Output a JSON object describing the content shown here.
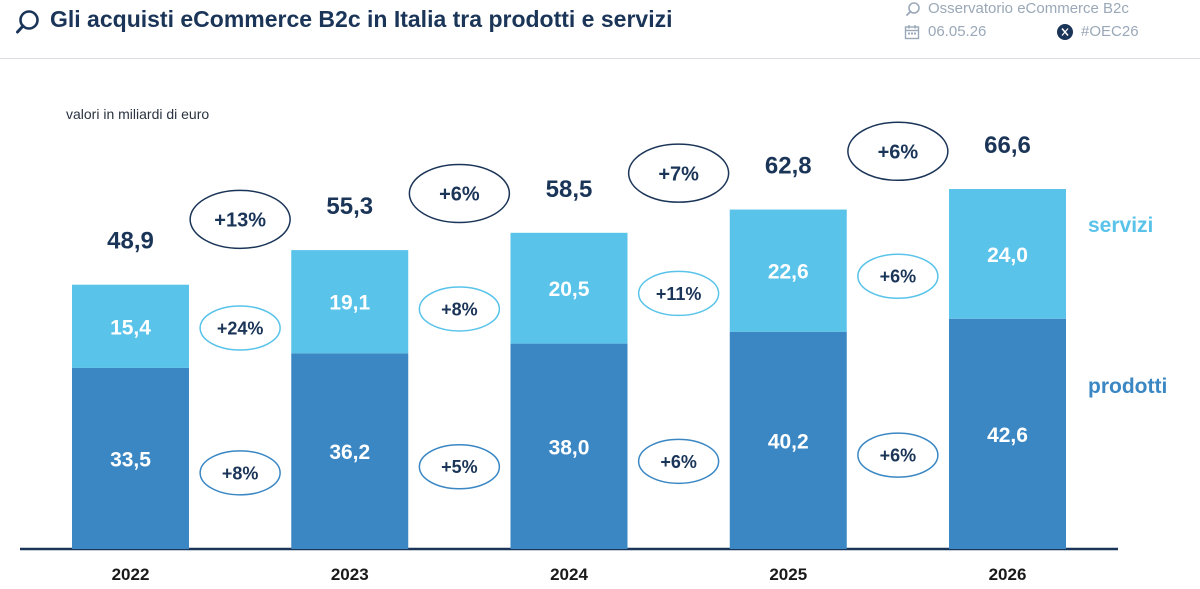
{
  "header": {
    "title": "Gli acquisti eCommerce B2c in Italia tra prodotti e servizi",
    "source": "Osservatorio eCommerce B2c",
    "date": "06.05.26",
    "hashtag": "#OEC26",
    "icons": [
      "search-icon",
      "calendar-icon",
      "x-logo-icon"
    ]
  },
  "colors": {
    "title": "#1b3558",
    "prodotti": "#3a87c4",
    "servizi": "#59c3ea",
    "total_ellipse": "#1b3558",
    "servizi_ellipse": "#59c3ea",
    "prodotti_ellipse": "#3a87c4",
    "axis": "#1b3558"
  },
  "chart_data": {
    "type": "bar",
    "stacked": true,
    "subtitle": "valori in miliardi di euro",
    "categories": [
      "2022",
      "2023",
      "2024",
      "2025",
      "2026"
    ],
    "series": [
      {
        "name": "prodotti",
        "values": [
          33.5,
          36.2,
          38.0,
          40.2,
          42.6
        ],
        "labels": [
          "33,5",
          "36,2",
          "38,0",
          "40,2",
          "42,6"
        ]
      },
      {
        "name": "servizi",
        "values": [
          15.4,
          19.1,
          20.5,
          22.6,
          24.0
        ],
        "labels": [
          "15,4",
          "19,1",
          "20,5",
          "22,6",
          "24,0"
        ]
      }
    ],
    "totals": [
      48.9,
      55.3,
      58.5,
      62.8,
      66.6
    ],
    "total_labels": [
      "48,9",
      "55,3",
      "58,5",
      "62,8",
      "66,6"
    ],
    "growth_total": [
      "+13%",
      "+6%",
      "+7%",
      "+6%"
    ],
    "growth_servizi": [
      "+24%",
      "+8%",
      "+11%",
      "+6%"
    ],
    "growth_prodotti": [
      "+8%",
      "+5%",
      "+6%",
      "+6%"
    ],
    "ylim": [
      0,
      70
    ],
    "legend": [
      "servizi",
      "prodotti"
    ],
    "legend_position": "right",
    "grid": false
  }
}
